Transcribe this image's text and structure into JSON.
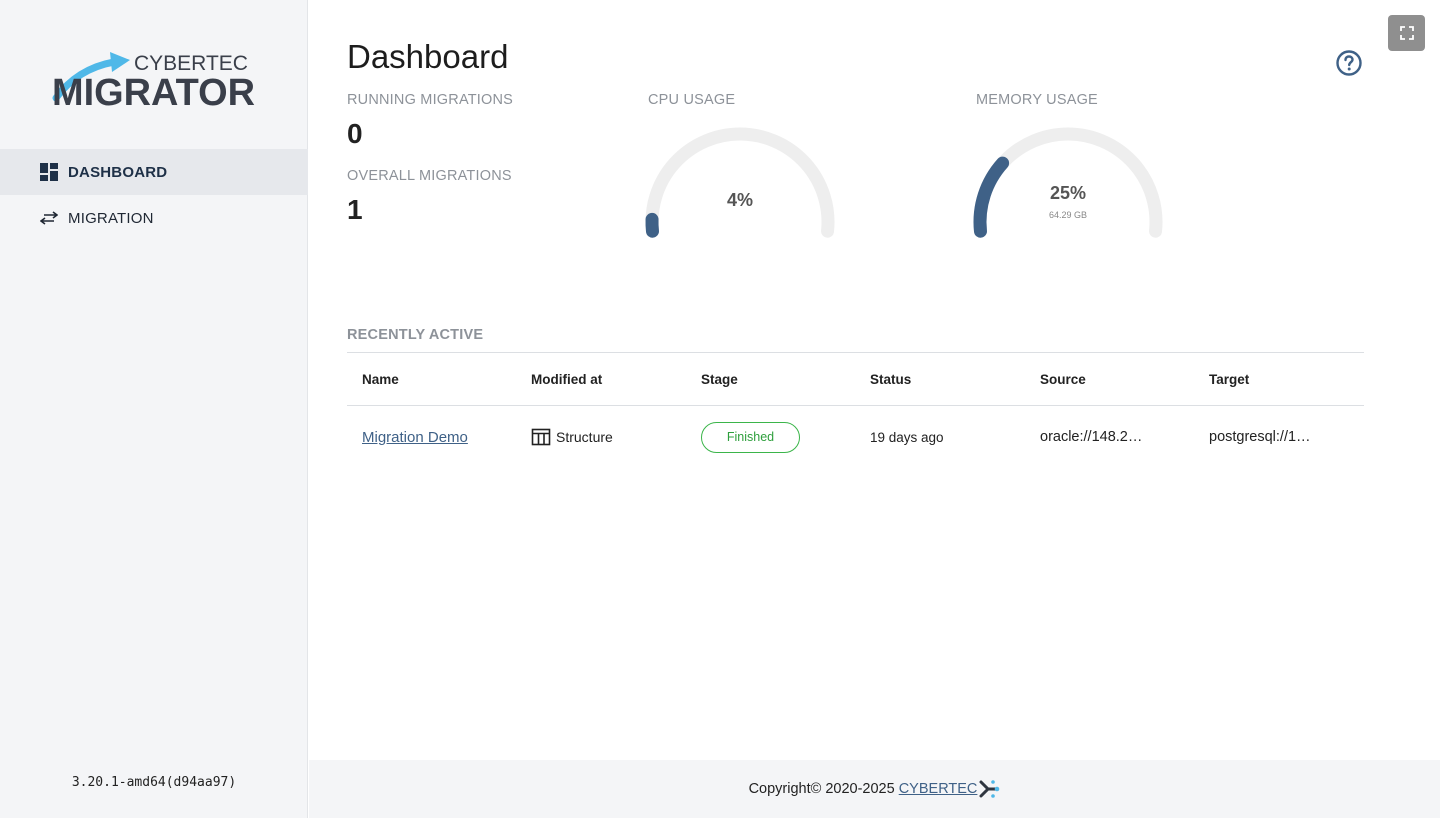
{
  "sidebar": {
    "logo": {
      "top_text": "CYBERTEC",
      "main_text": "MIGRATOR"
    },
    "items": [
      {
        "label": "DASHBOARD",
        "icon": "dashboard-icon",
        "active": true
      },
      {
        "label": "MIGRATION",
        "icon": "swap-arrows-icon",
        "active": false
      }
    ],
    "version": "3.20.1-amd64(d94aa97)"
  },
  "header": {
    "title": "Dashboard"
  },
  "stats": {
    "running": {
      "label": "RUNNING MIGRATIONS",
      "value": "0"
    },
    "overall": {
      "label": "OVERALL MIGRATIONS",
      "value": "1"
    }
  },
  "gauges": {
    "cpu": {
      "label": "CPU USAGE",
      "value_text": "4%",
      "fraction": 0.04
    },
    "memory": {
      "label": "MEMORY USAGE",
      "value_text": "25%",
      "sub_text": "64.29 GB",
      "fraction": 0.25
    }
  },
  "recent": {
    "label": "RECENTLY ACTIVE",
    "columns": [
      "Name",
      "Modified at",
      "Stage",
      "Status",
      "Source",
      "Target"
    ],
    "rows": [
      {
        "name": "Migration Demo",
        "modified_at": "Structure",
        "stage": "Finished",
        "status": "19 days ago",
        "source": "oracle://148.2…",
        "target": "postgresql://1…"
      }
    ]
  },
  "footer": {
    "copyright": "Copyright© 2020-2025",
    "brand": "CYBERTEC"
  },
  "colors": {
    "accent": "#3f6187",
    "gauge_fill": "#3f6187",
    "gauge_track": "#eeeeee",
    "badge_green": "#3bb54a",
    "logo_arrow": "#4fb8e8",
    "logo_dark": "#3a3f4a"
  }
}
